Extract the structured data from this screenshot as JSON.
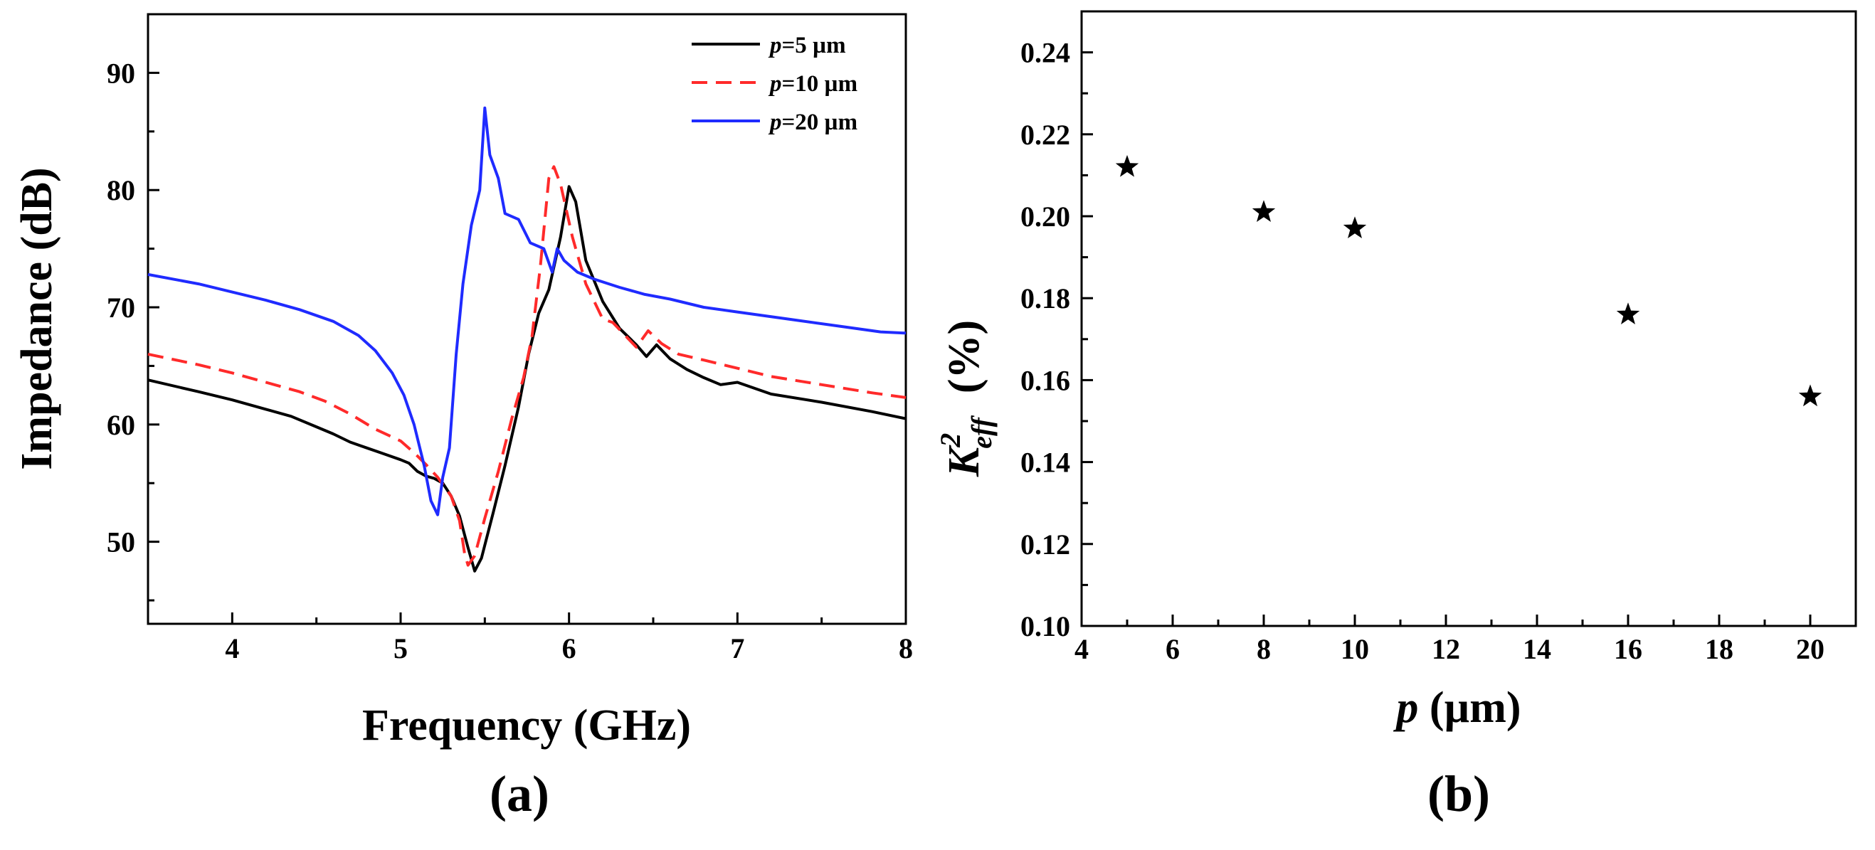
{
  "chart_data": [
    {
      "panel_label": "(a)",
      "type": "line",
      "xlabel": "Frequency (GHz)",
      "ylabel": "Impedance (dB)",
      "xlim": [
        3.5,
        8.0
      ],
      "ylim": [
        43.0,
        95.0
      ],
      "x_ticks": [
        4,
        5,
        6,
        7,
        8
      ],
      "y_ticks": [
        50,
        60,
        70,
        80,
        90
      ],
      "grid": false,
      "legend_position": "top-right",
      "legend": [
        {
          "prefix": "p",
          "suffix": "=5 µm",
          "color": "#000000",
          "dash": "solid"
        },
        {
          "prefix": "p",
          "suffix": "=10 µm",
          "color": "#ff2a2a",
          "dash": "dashed"
        },
        {
          "prefix": "p",
          "suffix": "=20 µm",
          "color": "#1f2bff",
          "dash": "solid"
        }
      ],
      "series": [
        {
          "color": "#000000",
          "dash": "solid",
          "points": [
            [
              3.5,
              63.8
            ],
            [
              3.8,
              62.8
            ],
            [
              4.0,
              62.1
            ],
            [
              4.2,
              61.3
            ],
            [
              4.35,
              60.7
            ],
            [
              4.5,
              59.8
            ],
            [
              4.6,
              59.2
            ],
            [
              4.7,
              58.5
            ],
            [
              4.8,
              58.0
            ],
            [
              4.9,
              57.5
            ],
            [
              5.0,
              57.0
            ],
            [
              5.05,
              56.7
            ],
            [
              5.1,
              56.0
            ],
            [
              5.15,
              55.6
            ],
            [
              5.2,
              55.4
            ],
            [
              5.25,
              55.0
            ],
            [
              5.3,
              53.9
            ],
            [
              5.35,
              52.2
            ],
            [
              5.4,
              49.5
            ],
            [
              5.44,
              47.5
            ],
            [
              5.48,
              48.6
            ],
            [
              5.55,
              52.5
            ],
            [
              5.62,
              56.5
            ],
            [
              5.7,
              61.5
            ],
            [
              5.76,
              66.0
            ],
            [
              5.82,
              69.5
            ],
            [
              5.88,
              71.5
            ],
            [
              5.95,
              76.0
            ],
            [
              6.0,
              80.3
            ],
            [
              6.04,
              79.0
            ],
            [
              6.1,
              74.0
            ],
            [
              6.2,
              70.5
            ],
            [
              6.3,
              68.2
            ],
            [
              6.4,
              66.8
            ],
            [
              6.46,
              65.8
            ],
            [
              6.52,
              66.8
            ],
            [
              6.6,
              65.6
            ],
            [
              6.7,
              64.7
            ],
            [
              6.8,
              64.0
            ],
            [
              6.9,
              63.4
            ],
            [
              7.0,
              63.6
            ],
            [
              7.2,
              62.6
            ],
            [
              7.5,
              61.9
            ],
            [
              7.8,
              61.1
            ],
            [
              8.0,
              60.5
            ]
          ]
        },
        {
          "color": "#ff2a2a",
          "dash": "dashed",
          "points": [
            [
              3.5,
              66.0
            ],
            [
              3.8,
              65.1
            ],
            [
              4.0,
              64.4
            ],
            [
              4.2,
              63.6
            ],
            [
              4.4,
              62.8
            ],
            [
              4.55,
              62.0
            ],
            [
              4.7,
              60.9
            ],
            [
              4.85,
              59.6
            ],
            [
              5.0,
              58.6
            ],
            [
              5.08,
              57.6
            ],
            [
              5.15,
              56.6
            ],
            [
              5.22,
              55.5
            ],
            [
              5.3,
              53.9
            ],
            [
              5.35,
              51.8
            ],
            [
              5.38,
              49.0
            ],
            [
              5.4,
              48.0
            ],
            [
              5.44,
              48.8
            ],
            [
              5.5,
              52.0
            ],
            [
              5.58,
              56.0
            ],
            [
              5.66,
              60.5
            ],
            [
              5.73,
              64.0
            ],
            [
              5.78,
              67.5
            ],
            [
              5.83,
              73.5
            ],
            [
              5.88,
              81.0
            ],
            [
              5.91,
              82.0
            ],
            [
              5.95,
              80.5
            ],
            [
              6.02,
              76.0
            ],
            [
              6.1,
              72.0
            ],
            [
              6.2,
              69.0
            ],
            [
              6.26,
              68.7
            ],
            [
              6.32,
              67.8
            ],
            [
              6.4,
              66.6
            ],
            [
              6.47,
              68.0
            ],
            [
              6.55,
              66.9
            ],
            [
              6.65,
              66.0
            ],
            [
              6.8,
              65.5
            ],
            [
              7.0,
              64.8
            ],
            [
              7.2,
              64.1
            ],
            [
              7.5,
              63.4
            ],
            [
              7.8,
              62.7
            ],
            [
              8.0,
              62.3
            ]
          ]
        },
        {
          "color": "#1f2bff",
          "dash": "solid",
          "points": [
            [
              3.5,
              72.8
            ],
            [
              3.8,
              72.0
            ],
            [
              4.0,
              71.3
            ],
            [
              4.2,
              70.6
            ],
            [
              4.4,
              69.8
            ],
            [
              4.6,
              68.8
            ],
            [
              4.75,
              67.6
            ],
            [
              4.85,
              66.3
            ],
            [
              4.95,
              64.4
            ],
            [
              5.02,
              62.5
            ],
            [
              5.08,
              60.0
            ],
            [
              5.14,
              56.5
            ],
            [
              5.18,
              53.5
            ],
            [
              5.22,
              52.3
            ],
            [
              5.25,
              55.5
            ],
            [
              5.29,
              58.0
            ],
            [
              5.33,
              66.0
            ],
            [
              5.37,
              72.0
            ],
            [
              5.42,
              77.0
            ],
            [
              5.47,
              80.0
            ],
            [
              5.5,
              87.0
            ],
            [
              5.53,
              83.0
            ],
            [
              5.58,
              81.0
            ],
            [
              5.62,
              78.0
            ],
            [
              5.7,
              77.5
            ],
            [
              5.77,
              75.5
            ],
            [
              5.85,
              75.0
            ],
            [
              5.9,
              73.0
            ],
            [
              5.93,
              75.0
            ],
            [
              5.97,
              74.0
            ],
            [
              6.05,
              73.0
            ],
            [
              6.15,
              72.4
            ],
            [
              6.3,
              71.7
            ],
            [
              6.45,
              71.1
            ],
            [
              6.6,
              70.7
            ],
            [
              6.8,
              70.0
            ],
            [
              7.0,
              69.6
            ],
            [
              7.3,
              69.0
            ],
            [
              7.6,
              68.4
            ],
            [
              7.85,
              67.9
            ],
            [
              8.0,
              67.8
            ]
          ]
        }
      ]
    },
    {
      "panel_label": "(b)",
      "type": "scatter",
      "xlabel_prefix": "p",
      "xlabel_suffix": " (µm)",
      "ylabel_base": "K",
      "ylabel_sup": "2",
      "ylabel_sub": "eff",
      "ylabel_unit": "(%)",
      "xlim": [
        4,
        21
      ],
      "ylim": [
        0.1,
        0.25
      ],
      "x_ticks": [
        4,
        6,
        8,
        10,
        12,
        14,
        16,
        18,
        20
      ],
      "y_ticks": [
        0.1,
        0.12,
        0.14,
        0.16,
        0.18,
        0.2,
        0.22,
        0.24
      ],
      "grid": false,
      "marker": "star",
      "marker_color": "#000000",
      "x": [
        5,
        8,
        10,
        16,
        20
      ],
      "y": [
        0.212,
        0.201,
        0.197,
        0.176,
        0.156
      ]
    }
  ]
}
